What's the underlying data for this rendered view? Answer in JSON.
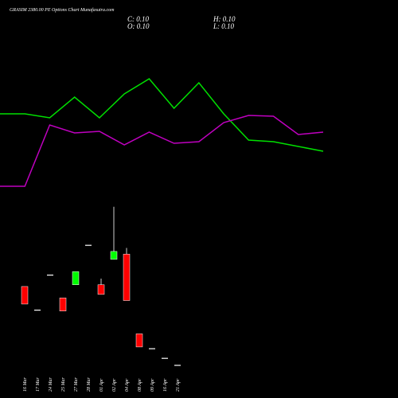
{
  "chart_data": [
    {
      "type": "candlestick",
      "title": "GRASIM 2380.00 PE Options Chart Munafasutra.com",
      "annotations": [
        "C: 0.10",
        "H: 0.10",
        "O: 0.10",
        "L: 0.10"
      ],
      "categories": [
        "16 Mar",
        "17 Mar",
        "24 Mar",
        "25 Mar",
        "27 Mar",
        "28 Mar",
        "01 Apr",
        "02 Apr",
        "04 Apr",
        "08 Apr",
        "09 Apr",
        "16 Apr",
        "21 Apr"
      ],
      "open": [
        1.0,
        0.73,
        1.13,
        0.87,
        1.02,
        1.47,
        1.02,
        1.31,
        1.37,
        0.46,
        0.29,
        0.18,
        0.1
      ],
      "high": [
        1.0,
        0.73,
        1.13,
        0.87,
        1.17,
        1.47,
        1.09,
        1.91,
        1.44,
        0.46,
        0.29,
        0.18,
        0.1
      ],
      "low": [
        0.8,
        0.73,
        1.13,
        0.72,
        1.02,
        1.47,
        0.91,
        1.31,
        0.84,
        0.31,
        0.29,
        0.18,
        0.1
      ],
      "close": [
        0.8,
        0.73,
        1.13,
        0.72,
        1.17,
        1.47,
        0.91,
        1.4,
        0.84,
        0.31,
        0.29,
        0.18,
        0.1
      ],
      "up_color": "#00ff00",
      "down_color": "#ff0000",
      "ylim": [
        0,
        4.27
      ]
    },
    {
      "type": "line",
      "series": [
        {
          "color": "#00e000",
          "values": [
            107,
            107,
            102,
            128,
            102,
            132,
            151,
            114,
            146,
            107,
            74,
            72,
            66,
            60
          ]
        },
        {
          "color": "#c000c0",
          "values": [
            16,
            16,
            93,
            83,
            85,
            68,
            84,
            70,
            72,
            96,
            105,
            104,
            81,
            84
          ]
        }
      ],
      "ylim": [
        0,
        250
      ]
    }
  ]
}
